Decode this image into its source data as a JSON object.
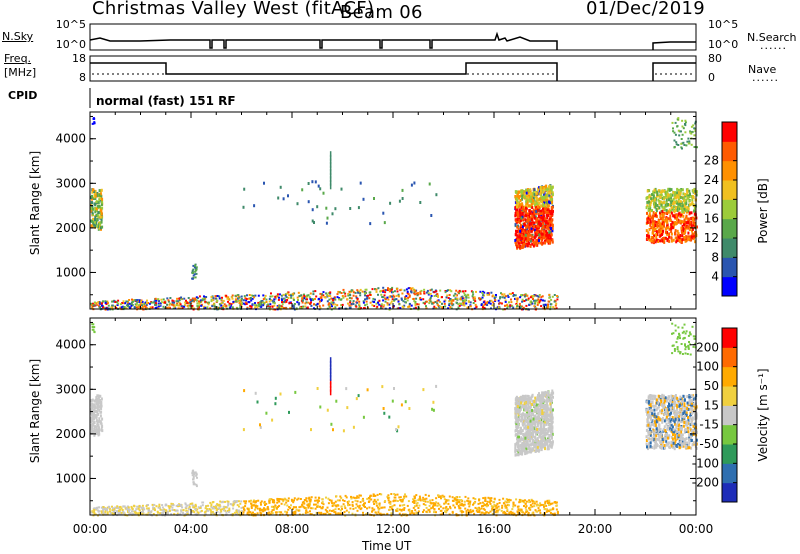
{
  "header": {
    "station": "Christmas Valley West (fitACF)",
    "beam": "Beam 06",
    "date": "01/Dec/2019"
  },
  "labels": {
    "nsky": "N.Sky",
    "nsearch": "N.Search",
    "freq": "Freq.",
    "mhz": "[MHz]",
    "nave": "Nave",
    "cpid": "CPID",
    "cpid_value": "normal (fast) 151 RF",
    "dotted_key": "......"
  },
  "ticks": {
    "noise_left": [
      "10^5",
      "10^0"
    ],
    "noise_right": [
      "10^5",
      "10^0"
    ],
    "freq_left": [
      "18",
      "8"
    ],
    "freq_right": [
      "80",
      "0"
    ]
  },
  "chart_data": [
    {
      "type": "heatmap",
      "name": "power",
      "ylabel": "Slant Range [km]",
      "xlabel": "",
      "yticks": [
        1000,
        2000,
        3000,
        4000
      ],
      "ylim": [
        180,
        4600
      ],
      "xlim": [
        0,
        24
      ],
      "colorbar": {
        "label": "Power [dB]",
        "ticks": [
          "4",
          "8",
          "12",
          "16",
          "20",
          "24",
          "28"
        ],
        "colors": [
          "#0000ff",
          "#2a55b0",
          "#3f8a6a",
          "#59a84a",
          "#9ccc3a",
          "#f0c020",
          "#ff9000",
          "#ff5a00",
          "#ff0000"
        ]
      }
    },
    {
      "type": "heatmap",
      "name": "velocity",
      "ylabel": "Slant Range [km]",
      "xlabel": "Time UT",
      "xticks": [
        "00:00",
        "04:00",
        "08:00",
        "12:00",
        "16:00",
        "20:00",
        "00:00"
      ],
      "yticks": [
        1000,
        2000,
        3000,
        4000
      ],
      "ylim": [
        180,
        4600
      ],
      "xlim": [
        0,
        24
      ],
      "colorbar": {
        "label": "Velocity [m s⁻¹]",
        "ticks": [
          "200",
          "100",
          "50",
          "15",
          "-15",
          "-50",
          "-100",
          "-200"
        ],
        "colors": [
          "#1e2db8",
          "#2f6fb0",
          "#2f9a5a",
          "#77c840",
          "#c8c8c8",
          "#f0d040",
          "#ffaa00",
          "#ff6a00",
          "#ff0000"
        ]
      }
    }
  ]
}
